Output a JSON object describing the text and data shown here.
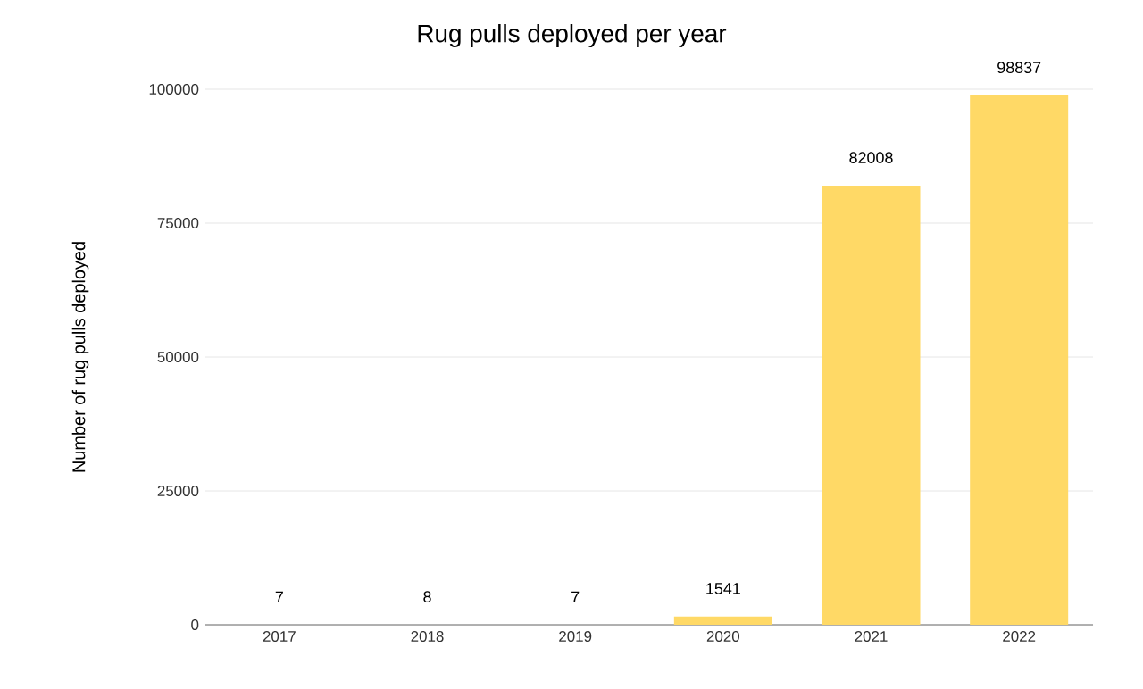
{
  "chart_data": {
    "type": "bar",
    "title": "Rug pulls deployed per year",
    "ylabel": "Number of rug pulls deployed",
    "categories": [
      "2017",
      "2018",
      "2019",
      "2020",
      "2021",
      "2022"
    ],
    "values": [
      7,
      8,
      7,
      1541,
      82008,
      98837
    ],
    "color": "#ffd966",
    "ylim": [
      0,
      100000
    ],
    "yticks": [
      0,
      25000,
      50000,
      75000,
      100000
    ],
    "grid": "y",
    "data_labels": true
  }
}
